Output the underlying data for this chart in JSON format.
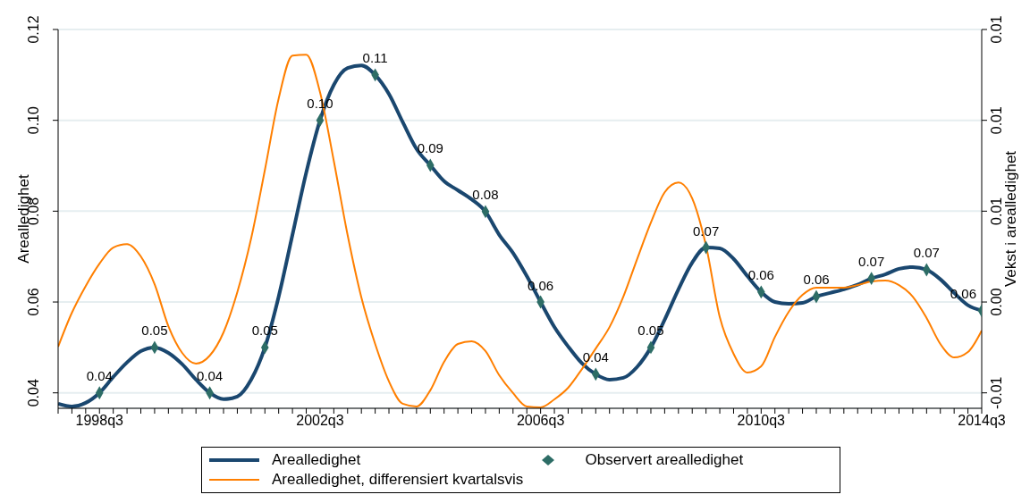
{
  "chart_data": {
    "type": "line",
    "ylabel": "Arealledighet",
    "y2label": "Vekst i arealledighet",
    "categories": [
      null,
      null,
      null,
      "1998q3",
      null,
      null,
      null,
      null,
      null,
      null,
      null,
      null,
      null,
      null,
      null,
      null,
      null,
      null,
      null,
      "2002q3",
      null,
      null,
      null,
      null,
      null,
      null,
      null,
      null,
      null,
      null,
      null,
      null,
      null,
      null,
      null,
      "2006q3",
      null,
      null,
      null,
      null,
      null,
      null,
      null,
      null,
      null,
      null,
      null,
      null,
      null,
      null,
      null,
      "2010q3",
      null,
      null,
      null,
      null,
      null,
      null,
      null,
      null,
      null,
      null,
      null,
      null,
      null,
      null,
      null,
      "2014q3"
    ],
    "series": [
      {
        "name": "Arealledighet",
        "color": "#1a476f",
        "marker": "none",
        "values": [
          0.0376,
          0.037,
          0.0378,
          0.04,
          0.0435,
          0.0467,
          0.0492,
          0.05,
          0.0488,
          0.0463,
          0.0429,
          0.04,
          0.0386,
          0.0392,
          0.0429,
          0.05,
          0.0612,
          0.0748,
          0.0885,
          0.1,
          0.1078,
          0.1115,
          0.1121,
          0.11,
          0.1058,
          0.0996,
          0.0937,
          0.0901,
          0.0866,
          0.0846,
          0.0826,
          0.0799,
          0.0748,
          0.0708,
          0.0657,
          0.06,
          0.0545,
          0.0502,
          0.0465,
          0.0441,
          0.0429,
          0.0433,
          0.0457,
          0.05,
          0.0561,
          0.0628,
          0.0687,
          0.072,
          0.0718,
          0.0695,
          0.0657,
          0.0622,
          0.06,
          0.0596,
          0.0598,
          0.0612,
          0.062,
          0.0628,
          0.0638,
          0.0652,
          0.0661,
          0.0673,
          0.0677,
          0.0671,
          0.065,
          0.062,
          0.0593,
          0.0581
        ]
      },
      {
        "name": "Observert arealledighet",
        "type": "scatter",
        "color": "#2d6d66",
        "marker": "diamond",
        "values": [
          null,
          null,
          null,
          0.04,
          null,
          null,
          null,
          0.05,
          null,
          null,
          null,
          0.04,
          null,
          null,
          null,
          0.05,
          null,
          null,
          null,
          0.1,
          null,
          null,
          null,
          0.11,
          null,
          null,
          null,
          0.0901,
          null,
          null,
          null,
          0.0799,
          null,
          null,
          null,
          0.06,
          null,
          null,
          null,
          0.0441,
          null,
          null,
          null,
          0.05,
          null,
          null,
          null,
          0.072,
          null,
          null,
          null,
          0.0622,
          null,
          null,
          null,
          0.0612,
          null,
          null,
          null,
          0.0652,
          null,
          null,
          null,
          0.0671,
          null,
          null,
          null,
          0.0581
        ],
        "value_labels": [
          null,
          null,
          null,
          "0.04",
          null,
          null,
          null,
          "0.05",
          null,
          null,
          null,
          "0.04",
          null,
          null,
          null,
          "0.05",
          null,
          null,
          null,
          "0.10",
          null,
          null,
          null,
          "0.11",
          null,
          null,
          null,
          "0.09",
          null,
          null,
          null,
          "0.08",
          null,
          null,
          null,
          "0.06",
          null,
          null,
          null,
          "0.04",
          null,
          null,
          null,
          "0.05",
          null,
          null,
          null,
          "0.07",
          null,
          null,
          null,
          "0.06",
          null,
          null,
          null,
          "0.06",
          null,
          null,
          null,
          "0.07",
          null,
          null,
          null,
          "0.07",
          null,
          null,
          null,
          "0.06"
        ]
      },
      {
        "name": "Arealledighet, differensiert kvartalsvis",
        "axis": "y2",
        "color": "#ff7f00",
        "marker": "none",
        "values": [
          -0.00246,
          -0.00059,
          0.00088,
          0.00211,
          0.003,
          0.00319,
          0.00251,
          0.00098,
          -0.00133,
          -0.0028,
          -0.00339,
          -0.00295,
          -0.00167,
          0.00054,
          0.00349,
          0.00727,
          0.0112,
          0.01356,
          0.01361,
          0.01155,
          0.00776,
          0.00369,
          0.00025,
          -0.00231,
          -0.00437,
          -0.0056,
          -0.00575,
          -0.00486,
          -0.00329,
          -0.00231,
          -0.00216,
          -0.0027,
          -0.00403,
          -0.00501,
          -0.00575,
          -0.0058,
          -0.00536,
          -0.00472,
          -0.00369,
          -0.00256,
          -0.00138,
          0.00029,
          0.00236,
          0.00437,
          0.00604,
          0.00658,
          0.0057,
          0.0031,
          -0.00084,
          -0.00285,
          -0.00388,
          -0.00354,
          -0.00192,
          -0.00054,
          0.00039,
          0.00079,
          0.00079,
          0.00079,
          0.00093,
          0.00113,
          0.00118,
          0.00093,
          0.00029,
          -0.00088,
          -0.00231,
          -0.00305,
          -0.00275,
          -0.00157
        ]
      }
    ],
    "ylim": [
      0.0366,
      0.12
    ],
    "yticks": [
      0.04,
      0.06,
      0.08,
      {
        "value": 0.1,
        "label": "0.10"
      },
      0.12
    ],
    "y2lim": [
      -0.00585,
      0.015
    ],
    "y2ticks": [
      {
        "value": -0.005,
        "label": "-0.01"
      },
      {
        "value": 0,
        "label": "0.00"
      },
      {
        "value": 0.005,
        "label": "0.01"
      },
      {
        "value": 0.01,
        "label": "0.01"
      },
      {
        "value": 0.015,
        "label": "0.01"
      }
    ],
    "grid": "y",
    "legend": "bottom"
  }
}
